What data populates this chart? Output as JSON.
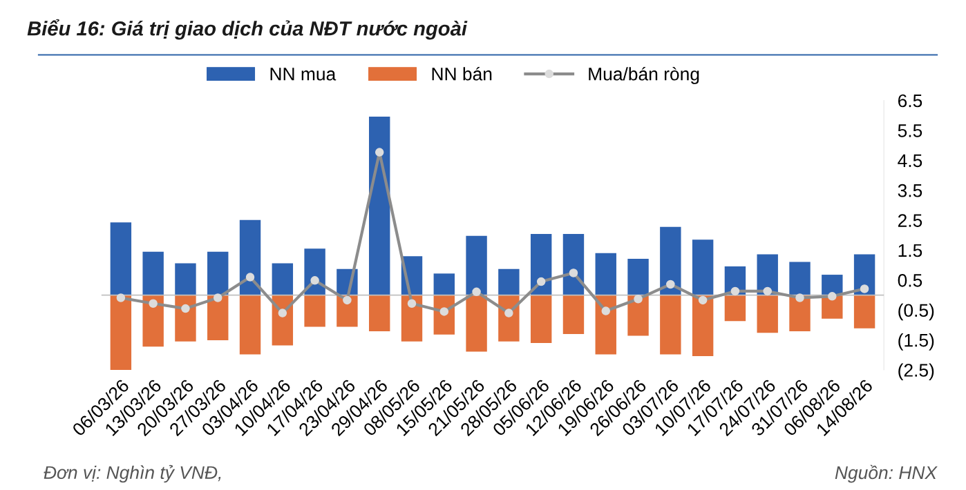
{
  "chart_data": {
    "type": "bar",
    "title": "Biểu 16: Giá trị giao dịch của NĐT nước ngoài",
    "categories": [
      "06/03/26",
      "13/03/26",
      "20/03/26",
      "27/03/26",
      "03/04/26",
      "10/04/26",
      "17/04/26",
      "23/04/26",
      "29/04/26",
      "08/05/26",
      "15/05/26",
      "21/05/26",
      "28/05/26",
      "05/06/26",
      "12/06/26",
      "19/06/26",
      "26/06/26",
      "03/07/26",
      "10/07/26",
      "17/07/26",
      "24/07/26",
      "31/07/26",
      "06/08/26",
      "14/08/26"
    ],
    "series": [
      {
        "name": "NN mua",
        "color": "#2d62b1",
        "values": [
          2.43,
          1.45,
          1.06,
          1.45,
          2.51,
          1.06,
          1.55,
          0.87,
          5.96,
          1.3,
          0.72,
          1.98,
          0.87,
          2.04,
          2.04,
          1.4,
          1.21,
          2.28,
          1.85,
          0.96,
          1.36,
          1.11,
          0.68,
          1.36
        ]
      },
      {
        "name": "NN bán",
        "color": "#e2703a",
        "values": [
          -2.5,
          -1.72,
          -1.55,
          -1.51,
          -1.98,
          -1.68,
          -1.06,
          -1.06,
          -1.21,
          -1.55,
          -1.32,
          -1.89,
          -1.55,
          -1.6,
          -1.3,
          -1.98,
          -1.36,
          -1.98,
          -2.04,
          -0.87,
          -1.26,
          -1.21,
          -0.79,
          -1.11
        ]
      },
      {
        "name": "Mua/bán ròng",
        "type": "line",
        "color": "#8c8c8c",
        "marker": "circle",
        "values": [
          -0.09,
          -0.28,
          -0.45,
          -0.09,
          0.6,
          -0.6,
          0.49,
          -0.17,
          4.77,
          -0.28,
          -0.55,
          0.11,
          -0.6,
          0.45,
          0.74,
          -0.53,
          -0.13,
          0.36,
          -0.17,
          0.13,
          0.13,
          -0.09,
          -0.04,
          0.21
        ]
      }
    ],
    "ylim": [
      -2.5,
      6.5
    ],
    "stacked": true,
    "yticks": [
      {
        "value": -2.5,
        "label": "(2.5)"
      },
      {
        "value": -1.5,
        "label": "(1.5)"
      },
      {
        "value": -0.5,
        "label": "(0.5)"
      },
      0.5,
      1.5,
      2.5,
      3.5,
      4.5,
      5.5,
      6.5
    ],
    "grid": false,
    "legend": "top",
    "annotations": [
      "Đơn vị: Nghìn tỷ VNĐ,",
      "Nguồn: HNX"
    ]
  }
}
